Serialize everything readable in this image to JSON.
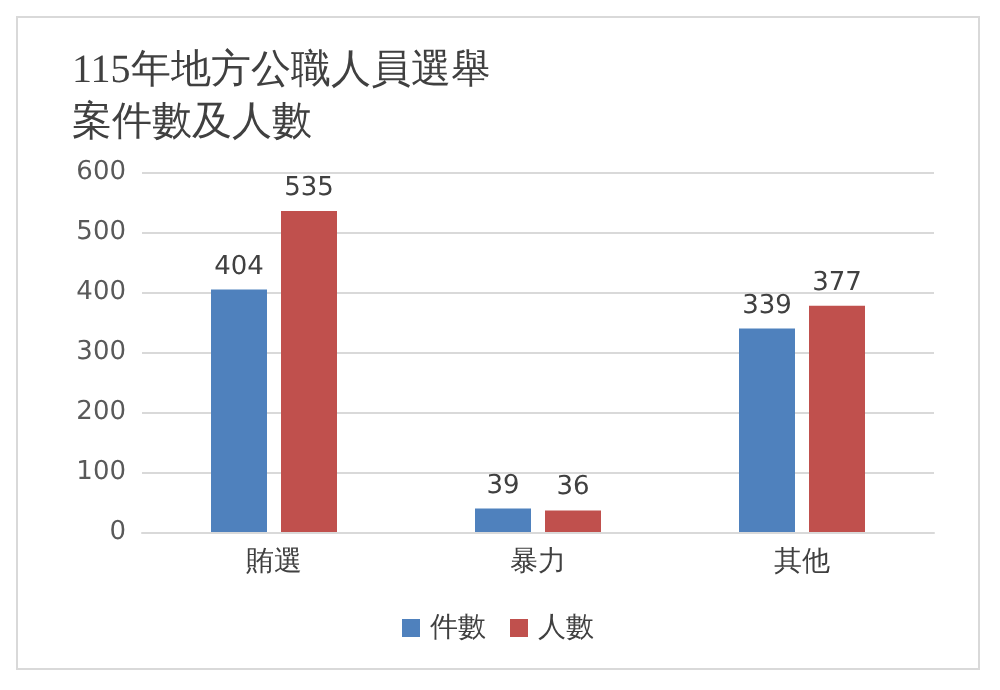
{
  "chart_data": {
    "type": "bar",
    "title": "115年地方公職人員選舉案件數及人數",
    "categories": [
      "賄選",
      "暴力",
      "其他"
    ],
    "series": [
      {
        "name": "件數",
        "color": "#4f81bd",
        "values": [
          404,
          39,
          339
        ]
      },
      {
        "name": "人數",
        "color": "#c0504d",
        "values": [
          535,
          36,
          377
        ]
      }
    ],
    "ylim": [
      0,
      600
    ],
    "yticks": [
      0,
      100,
      200,
      300,
      400,
      500,
      600
    ],
    "grid": "y",
    "legend": "bottom",
    "data_labels": true
  }
}
